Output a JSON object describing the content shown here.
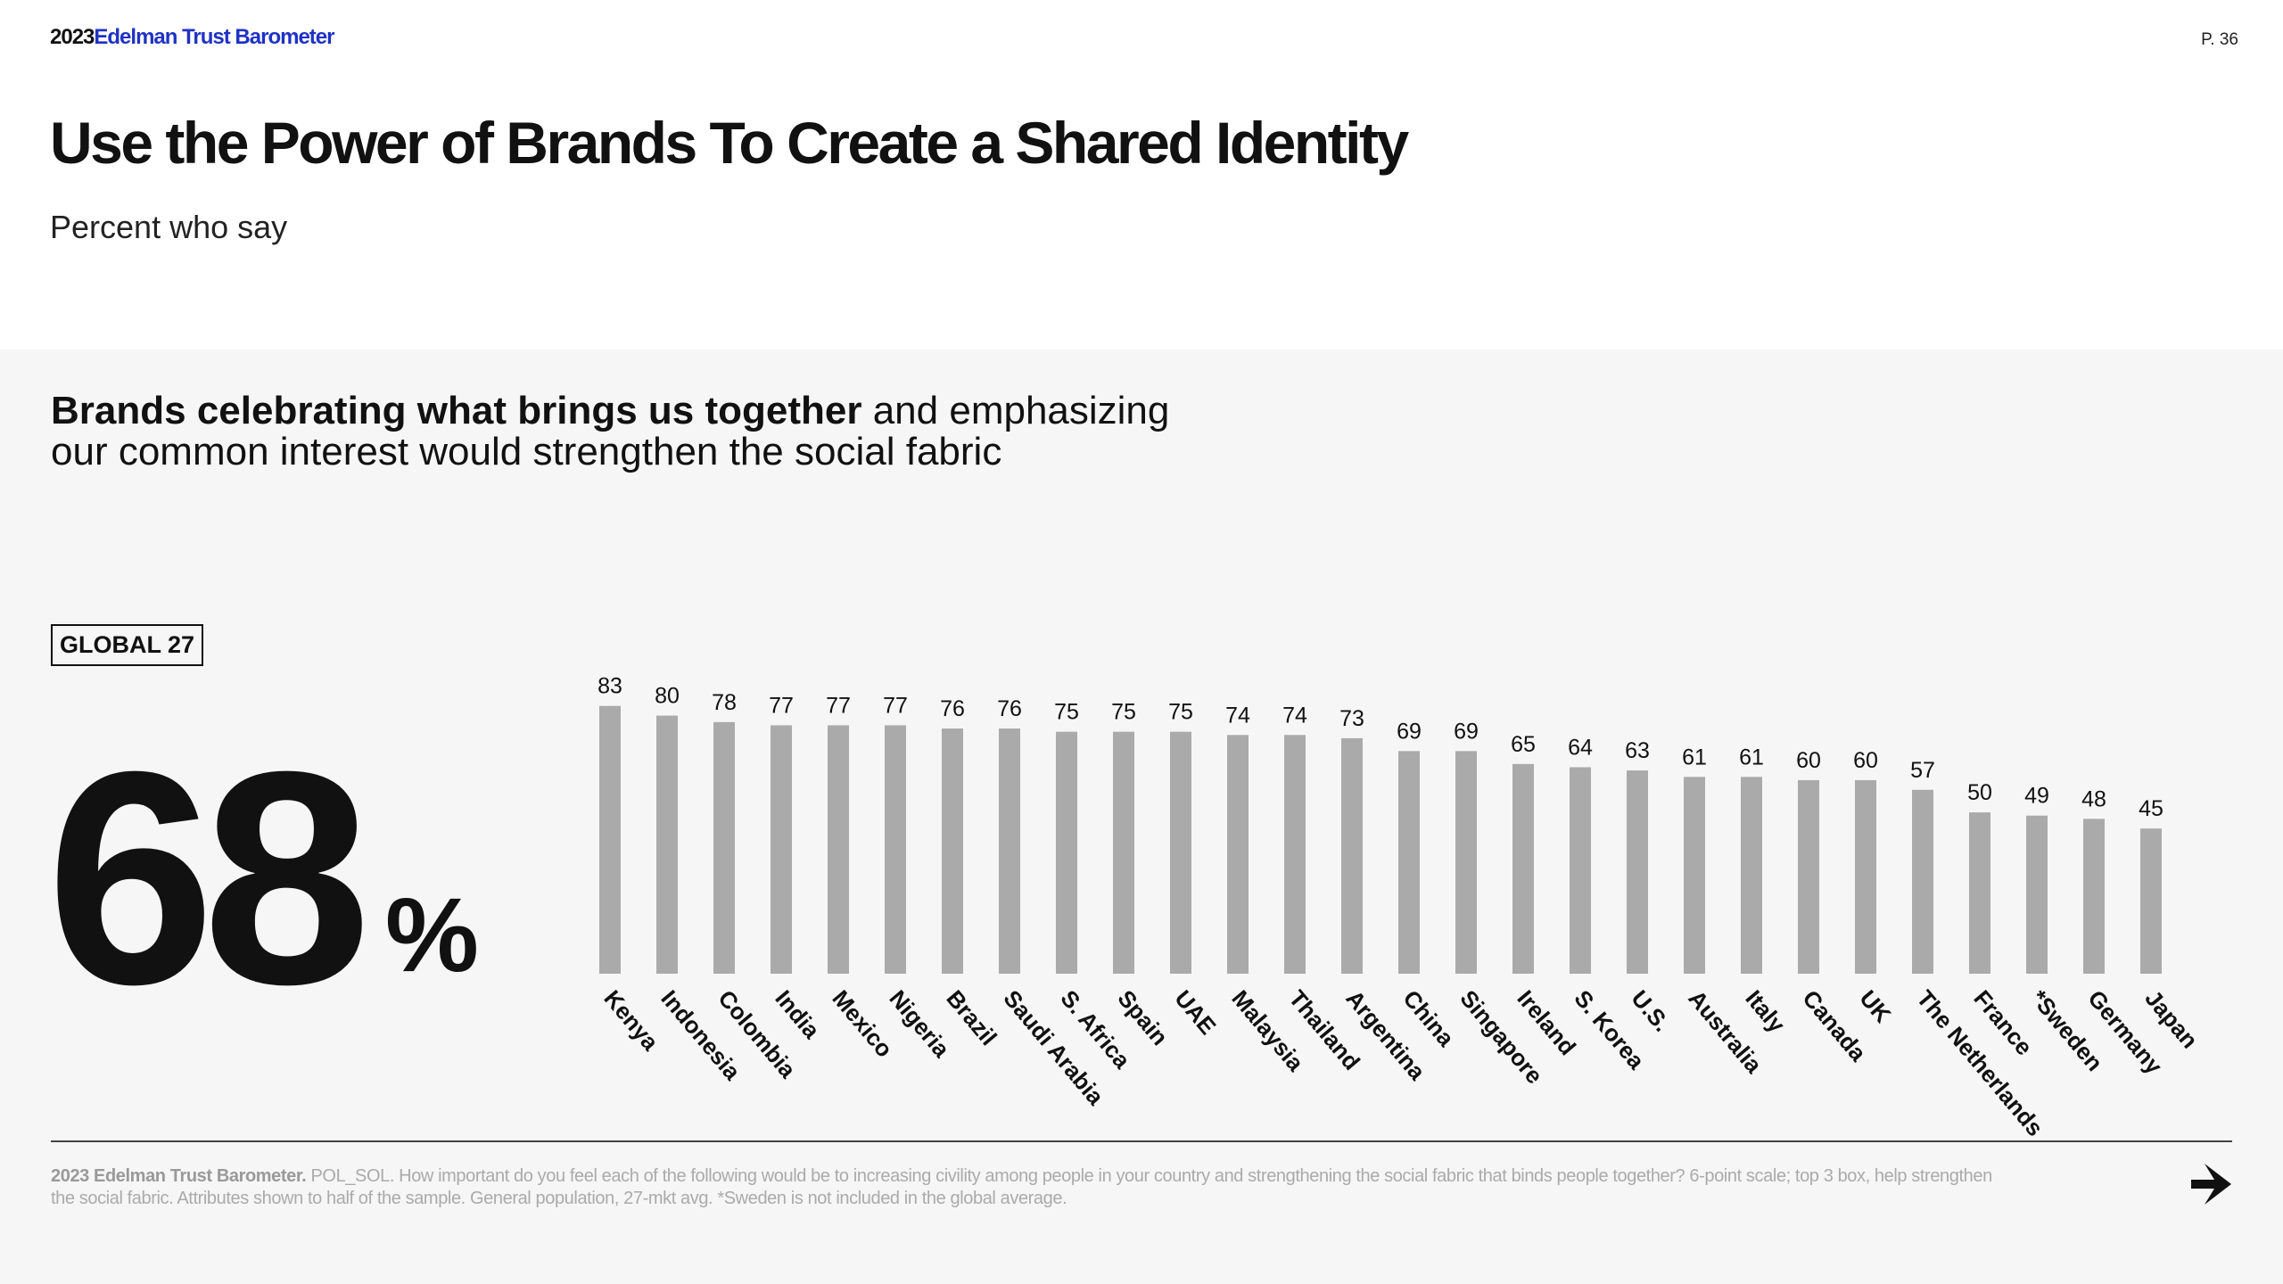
{
  "header": {
    "brand_year": "2023",
    "brand_name": "Edelman Trust Barometer",
    "page": "P. 36"
  },
  "title": "Use the Power of Brands To Create a Shared Identity",
  "subtitle": "Percent who say",
  "lead": {
    "bold": "Brands celebrating what brings us together",
    "rest": " and emphasizing our common interest would strengthen the social fabric"
  },
  "global": {
    "badge": "GLOBAL 27",
    "value": "68",
    "unit": "%"
  },
  "chart_data": {
    "type": "bar",
    "title": "",
    "xlabel": "",
    "ylabel": "",
    "ylim": [
      0,
      100
    ],
    "grid": false,
    "bar_color": "#aaaaaa",
    "categories": [
      "Kenya",
      "Indonesia",
      "Colombia",
      "India",
      "Mexico",
      "Nigeria",
      "Brazil",
      "Saudi Arabia",
      "S. Africa",
      "Spain",
      "UAE",
      "Malaysia",
      "Thailand",
      "Argentina",
      "China",
      "Singapore",
      "Ireland",
      "S. Korea",
      "U.S.",
      "Australia",
      "Italy",
      "Canada",
      "UK",
      "The Netherlands",
      "France",
      "*Sweden",
      "Germany",
      "Japan"
    ],
    "values": [
      83,
      80,
      78,
      77,
      77,
      77,
      76,
      76,
      75,
      75,
      75,
      74,
      74,
      73,
      69,
      69,
      65,
      64,
      63,
      61,
      61,
      60,
      60,
      57,
      50,
      49,
      48,
      45
    ]
  },
  "footnote": {
    "source": "2023 Edelman Trust Barometer.",
    "text": " POL_SOL. How important do you feel each of the following would be to increasing civility among people in your country and strengthening the social fabric that binds people together? 6-point scale; top 3 box, help strengthen the social fabric. Attributes shown to half of the sample. General population, 27-mkt avg. *Sweden is not included in the global average."
  },
  "icons": {
    "next": "next-arrow-icon"
  }
}
